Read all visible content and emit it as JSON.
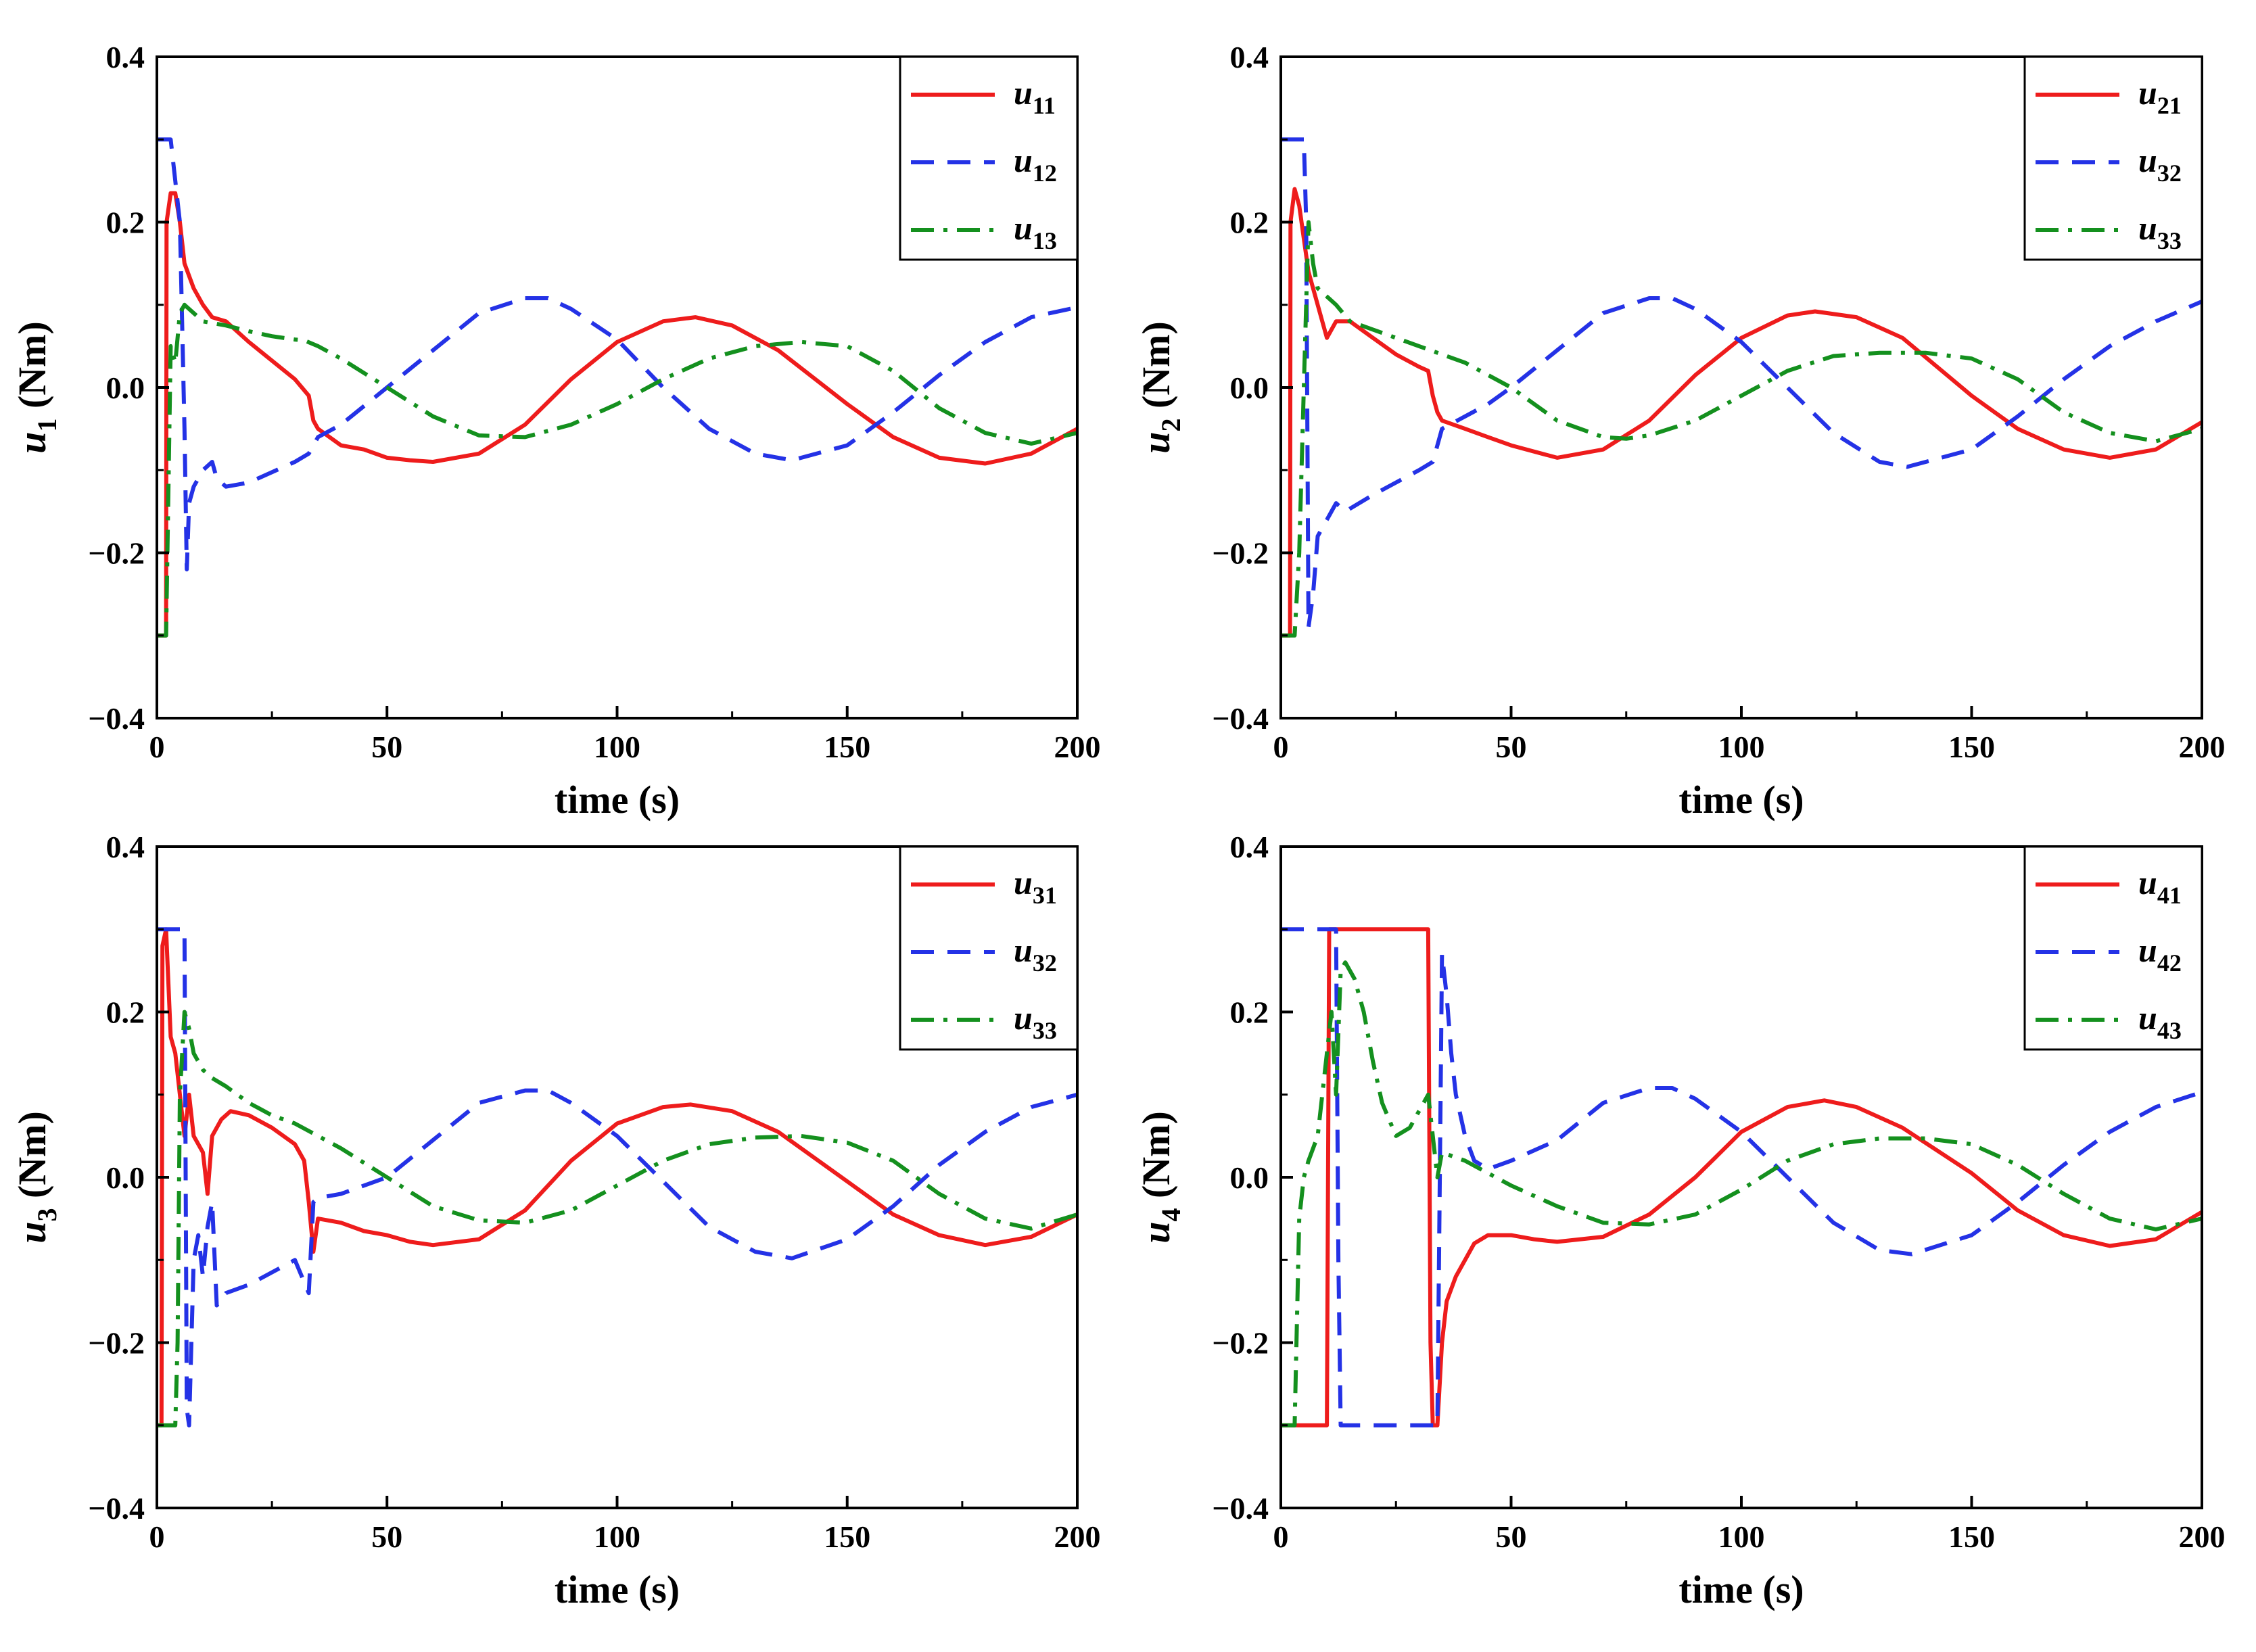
{
  "colors": {
    "s1": "#ee1c1c",
    "s2": "#2432e6",
    "s3": "#14901e",
    "axis": "#000000"
  },
  "chart_data": [
    {
      "type": "line",
      "xlabel": "time (s)",
      "ylabel": {
        "var": "u",
        "sub": "1",
        "unit": " (Nm)"
      },
      "xlim": [
        0,
        200
      ],
      "ylim": [
        -0.4,
        0.4
      ],
      "xticks": [
        0,
        50,
        100,
        150,
        200
      ],
      "xtick_labels": [
        "0",
        "50",
        "100",
        "150",
        "200"
      ],
      "yticks": [
        -0.4,
        -0.2,
        0.0,
        0.2,
        0.4
      ],
      "ytick_labels": [
        "−0.4",
        "−0.2",
        "0.0",
        "0.2",
        "0.4"
      ],
      "legend_position": "top-right",
      "series": [
        {
          "name": "u",
          "sub": "11",
          "style": "solid",
          "x": [
            0,
            1.5,
            2,
            2.1,
            3,
            4,
            5,
            6,
            8,
            10,
            12,
            15,
            20,
            30,
            33,
            34,
            35,
            40,
            45,
            50,
            55,
            60,
            70,
            80,
            90,
            100,
            110,
            117,
            125,
            135,
            150,
            160,
            170,
            180,
            190,
            200
          ],
          "y": [
            -0.3,
            -0.3,
            -0.3,
            0.2,
            0.235,
            0.235,
            0.2,
            0.15,
            0.12,
            0.1,
            0.085,
            0.08,
            0.055,
            0.01,
            -0.01,
            -0.04,
            -0.05,
            -0.07,
            -0.075,
            -0.085,
            -0.088,
            -0.09,
            -0.08,
            -0.045,
            0.01,
            0.055,
            0.08,
            0.085,
            0.075,
            0.045,
            -0.02,
            -0.06,
            -0.085,
            -0.092,
            -0.08,
            -0.05
          ]
        },
        {
          "name": "u",
          "sub": "12",
          "style": "dash",
          "x": [
            0,
            3,
            4,
            5,
            6,
            6.5,
            7,
            8,
            10,
            12,
            13,
            15,
            20,
            30,
            33,
            35,
            40,
            50,
            60,
            70,
            80,
            85,
            90,
            100,
            110,
            120,
            130,
            138,
            150,
            160,
            170,
            180,
            190,
            200
          ],
          "y": [
            0.3,
            0.3,
            0.25,
            0.2,
            -0.05,
            -0.22,
            -0.14,
            -0.12,
            -0.1,
            -0.09,
            -0.11,
            -0.12,
            -0.115,
            -0.09,
            -0.08,
            -0.06,
            -0.045,
            0.0,
            0.045,
            0.09,
            0.108,
            0.108,
            0.095,
            0.058,
            0.0,
            -0.05,
            -0.08,
            -0.088,
            -0.07,
            -0.03,
            0.015,
            0.055,
            0.085,
            0.097
          ]
        },
        {
          "name": "u",
          "sub": "13",
          "style": "dashdot",
          "x": [
            0,
            2,
            3,
            4,
            5,
            6,
            8,
            10,
            15,
            20,
            25,
            30,
            32,
            35,
            40,
            50,
            60,
            70,
            80,
            90,
            100,
            110,
            120,
            130,
            140,
            150,
            160,
            170,
            180,
            190,
            200
          ],
          "y": [
            -0.3,
            -0.3,
            0.05,
            0.03,
            0.09,
            0.1,
            0.09,
            0.08,
            0.075,
            0.068,
            0.062,
            0.058,
            0.057,
            0.05,
            0.035,
            0.0,
            -0.035,
            -0.058,
            -0.06,
            -0.045,
            -0.02,
            0.01,
            0.035,
            0.05,
            0.055,
            0.05,
            0.02,
            -0.025,
            -0.055,
            -0.068,
            -0.055
          ]
        }
      ]
    },
    {
      "type": "line",
      "xlabel": "time (s)",
      "ylabel": {
        "var": "u",
        "sub": "2",
        "unit": " (Nm)"
      },
      "xlim": [
        0,
        200
      ],
      "ylim": [
        -0.4,
        0.4
      ],
      "xticks": [
        0,
        50,
        100,
        150,
        200
      ],
      "xtick_labels": [
        "0",
        "50",
        "100",
        "150",
        "200"
      ],
      "yticks": [
        -0.4,
        -0.2,
        0.0,
        0.2,
        0.4
      ],
      "ytick_labels": [
        "−0.4",
        "−0.2",
        "0.0",
        "0.2",
        "0.4"
      ],
      "legend_position": "top-right",
      "series": [
        {
          "name": "u",
          "sub": "21",
          "style": "solid",
          "x": [
            0,
            1.5,
            2,
            2.1,
            3,
            4,
            5,
            6,
            8,
            10,
            12,
            15,
            20,
            25,
            30,
            32,
            33,
            34,
            35,
            40,
            45,
            50,
            60,
            70,
            80,
            90,
            100,
            110,
            116,
            125,
            135,
            150,
            160,
            170,
            180,
            190,
            200
          ],
          "y": [
            -0.3,
            -0.3,
            -0.3,
            0.2,
            0.24,
            0.22,
            0.18,
            0.14,
            0.1,
            0.06,
            0.08,
            0.08,
            0.06,
            0.04,
            0.025,
            0.02,
            -0.01,
            -0.03,
            -0.04,
            -0.05,
            -0.06,
            -0.07,
            -0.085,
            -0.075,
            -0.04,
            0.015,
            0.06,
            0.087,
            0.092,
            0.085,
            0.06,
            -0.01,
            -0.05,
            -0.075,
            -0.085,
            -0.075,
            -0.042
          ]
        },
        {
          "name": "u",
          "sub": "32",
          "style": "dash",
          "x": [
            0,
            4,
            5,
            5.5,
            6,
            7,
            8,
            10,
            12,
            14,
            20,
            30,
            33,
            35,
            40,
            45,
            50,
            60,
            70,
            80,
            85,
            90,
            100,
            110,
            120,
            130,
            136,
            150,
            160,
            170,
            180,
            190,
            200
          ],
          "y": [
            0.3,
            0.3,
            0.3,
            0.2,
            -0.29,
            -0.25,
            -0.18,
            -0.16,
            -0.14,
            -0.15,
            -0.13,
            -0.1,
            -0.09,
            -0.05,
            -0.035,
            -0.02,
            0.0,
            0.045,
            0.09,
            0.108,
            0.108,
            0.095,
            0.055,
            0.0,
            -0.055,
            -0.09,
            -0.096,
            -0.075,
            -0.035,
            0.01,
            0.05,
            0.08,
            0.104
          ]
        },
        {
          "name": "u",
          "sub": "33",
          "style": "dashdot",
          "x": [
            0,
            3,
            4,
            5,
            6,
            7,
            8,
            10,
            12,
            15,
            20,
            25,
            30,
            35,
            40,
            50,
            60,
            70,
            75,
            80,
            90,
            100,
            110,
            120,
            130,
            140,
            150,
            160,
            170,
            180,
            190,
            200
          ],
          "y": [
            -0.3,
            -0.3,
            -0.2,
            0.0,
            0.2,
            0.15,
            0.12,
            0.11,
            0.1,
            0.08,
            0.07,
            0.06,
            0.05,
            0.04,
            0.03,
            0.0,
            -0.04,
            -0.06,
            -0.062,
            -0.058,
            -0.04,
            -0.01,
            0.02,
            0.038,
            0.042,
            0.042,
            0.035,
            0.01,
            -0.03,
            -0.055,
            -0.065,
            -0.05
          ]
        }
      ]
    },
    {
      "type": "line",
      "xlabel": "time (s)",
      "ylabel": {
        "var": "u",
        "sub": "3",
        "unit": " (Nm)"
      },
      "xlim": [
        0,
        200
      ],
      "ylim": [
        -0.4,
        0.4
      ],
      "xticks": [
        0,
        50,
        100,
        150,
        200
      ],
      "xtick_labels": [
        "0",
        "50",
        "100",
        "150",
        "200"
      ],
      "yticks": [
        -0.4,
        -0.2,
        0.0,
        0.2,
        0.4
      ],
      "ytick_labels": [
        "−0.4",
        "−0.2",
        "0.0",
        "0.2",
        "0.4"
      ],
      "legend_position": "top-right",
      "series": [
        {
          "name": "u",
          "sub": "31",
          "style": "solid",
          "x": [
            0,
            1,
            1.2,
            2,
            3,
            4,
            5,
            6,
            7,
            8,
            10,
            11,
            12,
            14,
            16,
            20,
            25,
            30,
            32,
            33,
            34,
            35,
            40,
            45,
            50,
            55,
            60,
            70,
            80,
            90,
            100,
            110,
            116,
            125,
            135,
            150,
            160,
            170,
            180,
            190,
            200
          ],
          "y": [
            -0.3,
            -0.3,
            0.28,
            0.3,
            0.17,
            0.15,
            0.1,
            0.05,
            0.1,
            0.05,
            0.03,
            -0.02,
            0.05,
            0.07,
            0.08,
            0.075,
            0.06,
            0.04,
            0.02,
            -0.03,
            -0.09,
            -0.05,
            -0.055,
            -0.065,
            -0.07,
            -0.078,
            -0.082,
            -0.075,
            -0.04,
            0.02,
            0.065,
            0.085,
            0.088,
            0.08,
            0.055,
            -0.005,
            -0.045,
            -0.07,
            -0.082,
            -0.072,
            -0.045
          ]
        },
        {
          "name": "u",
          "sub": "32",
          "style": "dash",
          "x": [
            0,
            5,
            6,
            6.5,
            7,
            8,
            9,
            10,
            11,
            12,
            13,
            15,
            20,
            30,
            33,
            34,
            35,
            40,
            50,
            60,
            70,
            80,
            85,
            90,
            100,
            110,
            120,
            130,
            138,
            150,
            160,
            170,
            180,
            190,
            200
          ],
          "y": [
            0.3,
            0.3,
            0.3,
            -0.28,
            -0.3,
            -0.1,
            -0.07,
            -0.12,
            -0.06,
            -0.03,
            -0.155,
            -0.14,
            -0.13,
            -0.1,
            -0.14,
            -0.03,
            -0.025,
            -0.02,
            0.0,
            0.045,
            0.09,
            0.105,
            0.105,
            0.09,
            0.05,
            -0.005,
            -0.06,
            -0.09,
            -0.098,
            -0.075,
            -0.035,
            0.015,
            0.055,
            0.085,
            0.1
          ]
        },
        {
          "name": "u",
          "sub": "33",
          "style": "dashdot",
          "x": [
            0,
            4,
            4.5,
            5,
            6,
            7,
            8,
            10,
            12,
            15,
            20,
            25,
            30,
            35,
            40,
            50,
            60,
            70,
            80,
            90,
            100,
            110,
            120,
            130,
            140,
            150,
            160,
            170,
            180,
            190,
            200
          ],
          "y": [
            -0.3,
            -0.3,
            -0.2,
            0.1,
            0.2,
            0.18,
            0.15,
            0.13,
            0.12,
            0.11,
            0.09,
            0.075,
            0.065,
            0.05,
            0.035,
            0.0,
            -0.035,
            -0.052,
            -0.055,
            -0.04,
            -0.01,
            0.02,
            0.04,
            0.048,
            0.05,
            0.042,
            0.02,
            -0.02,
            -0.05,
            -0.062,
            -0.045
          ]
        }
      ]
    },
    {
      "type": "line",
      "xlabel": "time (s)",
      "ylabel": {
        "var": "u",
        "sub": "4",
        "unit": " (Nm)"
      },
      "xlim": [
        0,
        200
      ],
      "ylim": [
        -0.4,
        0.4
      ],
      "xticks": [
        0,
        50,
        100,
        150,
        200
      ],
      "xtick_labels": [
        "0",
        "50",
        "100",
        "150",
        "200"
      ],
      "yticks": [
        -0.4,
        -0.2,
        0.0,
        0.2,
        0.4
      ],
      "ytick_labels": [
        "−0.4",
        "−0.2",
        "0.0",
        "0.2",
        "0.4"
      ],
      "legend_position": "top-right",
      "series": [
        {
          "name": "u",
          "sub": "41",
          "style": "solid",
          "x": [
            0,
            10,
            10.5,
            32,
            32.5,
            33,
            34,
            35,
            36,
            38,
            40,
            42,
            45,
            50,
            55,
            60,
            70,
            80,
            90,
            100,
            110,
            118,
            125,
            135,
            150,
            160,
            170,
            180,
            190,
            200
          ],
          "y": [
            -0.3,
            -0.3,
            0.3,
            0.3,
            -0.2,
            -0.3,
            -0.3,
            -0.2,
            -0.15,
            -0.12,
            -0.1,
            -0.08,
            -0.07,
            -0.07,
            -0.075,
            -0.078,
            -0.072,
            -0.045,
            0.0,
            0.055,
            0.085,
            0.093,
            0.085,
            0.06,
            0.005,
            -0.04,
            -0.07,
            -0.083,
            -0.075,
            -0.042
          ]
        },
        {
          "name": "u",
          "sub": "42",
          "style": "dash",
          "x": [
            0,
            11,
            12,
            12.5,
            13,
            14,
            20,
            32,
            34,
            35,
            36,
            37,
            38,
            40,
            42,
            45,
            50,
            60,
            70,
            80,
            85,
            90,
            100,
            110,
            120,
            130,
            137,
            150,
            160,
            170,
            180,
            190,
            200
          ],
          "y": [
            0.3,
            0.3,
            0.3,
            -0.1,
            -0.3,
            -0.3,
            -0.3,
            -0.3,
            -0.3,
            0.27,
            0.22,
            0.15,
            0.1,
            0.05,
            0.02,
            0.01,
            0.02,
            0.045,
            0.09,
            0.108,
            0.108,
            0.095,
            0.055,
            0.0,
            -0.055,
            -0.088,
            -0.093,
            -0.07,
            -0.03,
            0.015,
            0.055,
            0.085,
            0.103
          ]
        },
        {
          "name": "u",
          "sub": "43",
          "style": "dashdot",
          "x": [
            0,
            3,
            4,
            5,
            6,
            8,
            10,
            11,
            12,
            13,
            14,
            16,
            18,
            20,
            22,
            25,
            28,
            30,
            32,
            33,
            34,
            35,
            40,
            45,
            50,
            60,
            70,
            80,
            90,
            100,
            110,
            120,
            130,
            140,
            150,
            160,
            170,
            180,
            190,
            200
          ],
          "y": [
            -0.3,
            -0.3,
            -0.05,
            0.0,
            0.02,
            0.05,
            0.15,
            0.2,
            0.1,
            0.25,
            0.26,
            0.24,
            0.2,
            0.14,
            0.09,
            0.05,
            0.06,
            0.08,
            0.1,
            0.05,
            0.0,
            0.03,
            0.02,
            0.005,
            -0.01,
            -0.035,
            -0.055,
            -0.057,
            -0.045,
            -0.015,
            0.02,
            0.04,
            0.047,
            0.047,
            0.04,
            0.015,
            -0.02,
            -0.05,
            -0.063,
            -0.05
          ]
        }
      ]
    }
  ]
}
